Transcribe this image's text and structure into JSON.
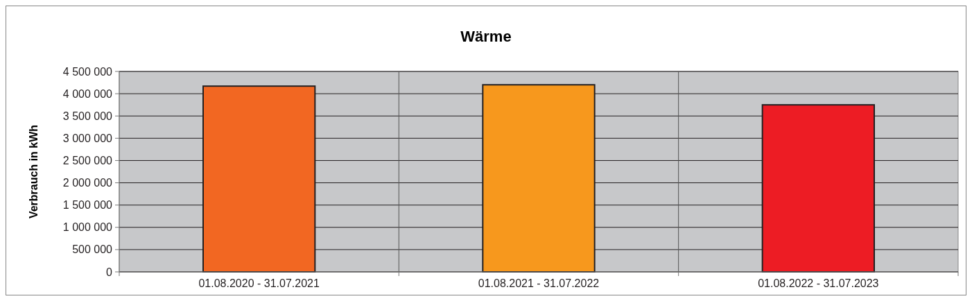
{
  "chart_data": {
    "type": "bar",
    "title": "Wärme",
    "ylabel": "Verbrauch in kWh",
    "categories": [
      "01.08.2020 - 31.07.2021",
      "01.08.2021 - 31.07.2022",
      "01.08.2022 - 31.07.2023"
    ],
    "values": [
      4170000,
      4200000,
      3750000
    ],
    "colors": [
      "#f26722",
      "#f7981d",
      "#ed1c24"
    ],
    "ylim": [
      0,
      4500000
    ],
    "yticks": [
      0,
      {
        "value": 500000,
        "label": "500 000"
      },
      {
        "value": 1000000,
        "label": "1 000 000"
      },
      {
        "value": 1500000,
        "label": "1 500 000"
      },
      {
        "value": 2000000,
        "label": "2 000 000"
      },
      {
        "value": 2500000,
        "label": "2 500 000"
      },
      {
        "value": 3000000,
        "label": "3 000 000"
      },
      {
        "value": 3500000,
        "label": "3 500 000"
      },
      {
        "value": 4000000,
        "label": "4 000 000"
      },
      {
        "value": 4500000,
        "label": "4 500 000"
      }
    ],
    "grid": true
  }
}
